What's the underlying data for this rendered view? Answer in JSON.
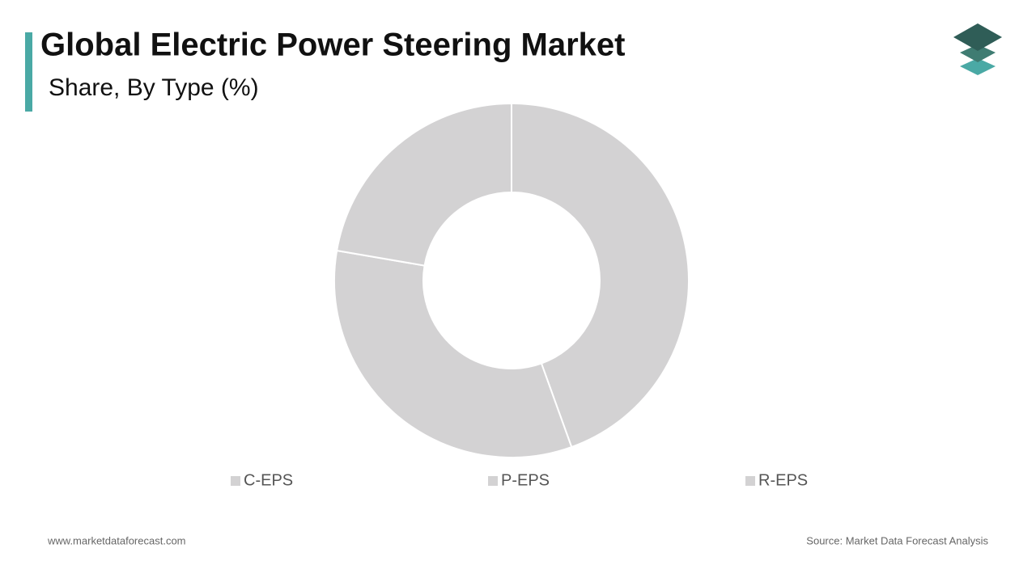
{
  "chart_data": {
    "type": "donut",
    "title": "Global Electric Power Steering Market",
    "subtitle": "Share, By Type (%)",
    "categories": [
      "C-EPS",
      "P-EPS",
      "R-EPS"
    ],
    "values": [
      44.5,
      33.2,
      22.3
    ],
    "colors": [
      "#d3d2d3",
      "#d3d2d3",
      "#d3d2d3"
    ],
    "legend": "bottom"
  },
  "footer": {
    "website": "www.marketdataforecast.com",
    "source": "Source: Market Data Forecast Analysis"
  }
}
